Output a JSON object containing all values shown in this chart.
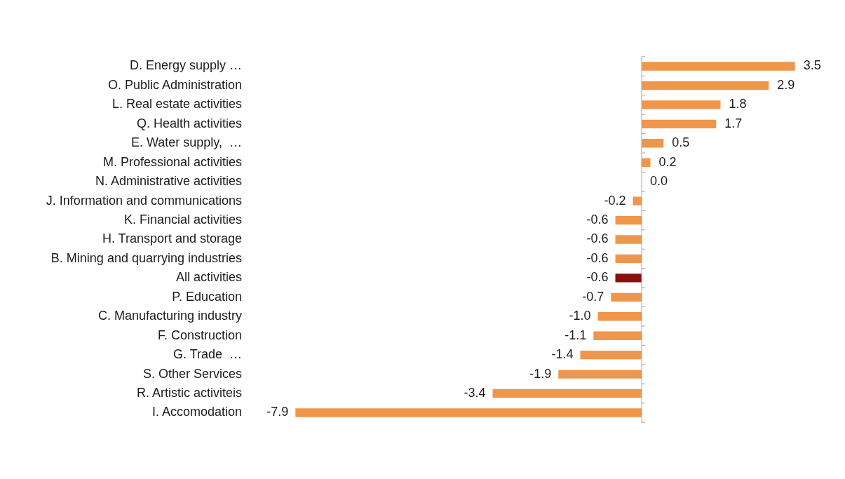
{
  "chart_data": {
    "type": "bar",
    "orientation": "horizontal",
    "categories": [
      "D. Energy supply …",
      "O. Public Administration",
      "L. Real estate activities",
      "Q. Health activities",
      "E. Water supply,  …",
      "M. Professional activities",
      "N. Administrative activities",
      "J. Information and communications",
      "K. Financial activities",
      "H. Transport and storage",
      "B. Mining and quarrying industries",
      "All activities",
      "P. Education",
      "C. Manufacturing industry",
      "F. Construction",
      "G. Trade  …",
      "S. Other Services",
      "R. Artistic activiteis",
      "I. Accomodation"
    ],
    "values": [
      3.5,
      2.9,
      1.8,
      1.7,
      0.5,
      0.2,
      0.0,
      -0.2,
      -0.6,
      -0.6,
      -0.6,
      -0.6,
      -0.7,
      -1.0,
      -1.1,
      -1.4,
      -1.9,
      -3.4,
      -7.9
    ],
    "value_labels": [
      "3.5",
      "2.9",
      "1.8",
      "1.7",
      "0.5",
      "0.2",
      "0.0",
      "-0.2",
      "-0.6",
      "-0.6",
      "-0.6",
      "-0.6",
      "-0.7",
      "-1.0",
      "-1.1",
      "-1.4",
      "-1.9",
      "-3.4",
      "-7.9"
    ],
    "colors": [
      "#f0964b",
      "#f0964b",
      "#f0964b",
      "#f0964b",
      "#f0964b",
      "#f0964b",
      "#f0964b",
      "#f0964b",
      "#f0964b",
      "#f0964b",
      "#f0964b",
      "#8b0f0f",
      "#f0964b",
      "#f0964b",
      "#f0964b",
      "#f0964b",
      "#f0964b",
      "#f0964b",
      "#f0964b"
    ],
    "tick_labels": "y",
    "grid": false,
    "legend": false
  }
}
